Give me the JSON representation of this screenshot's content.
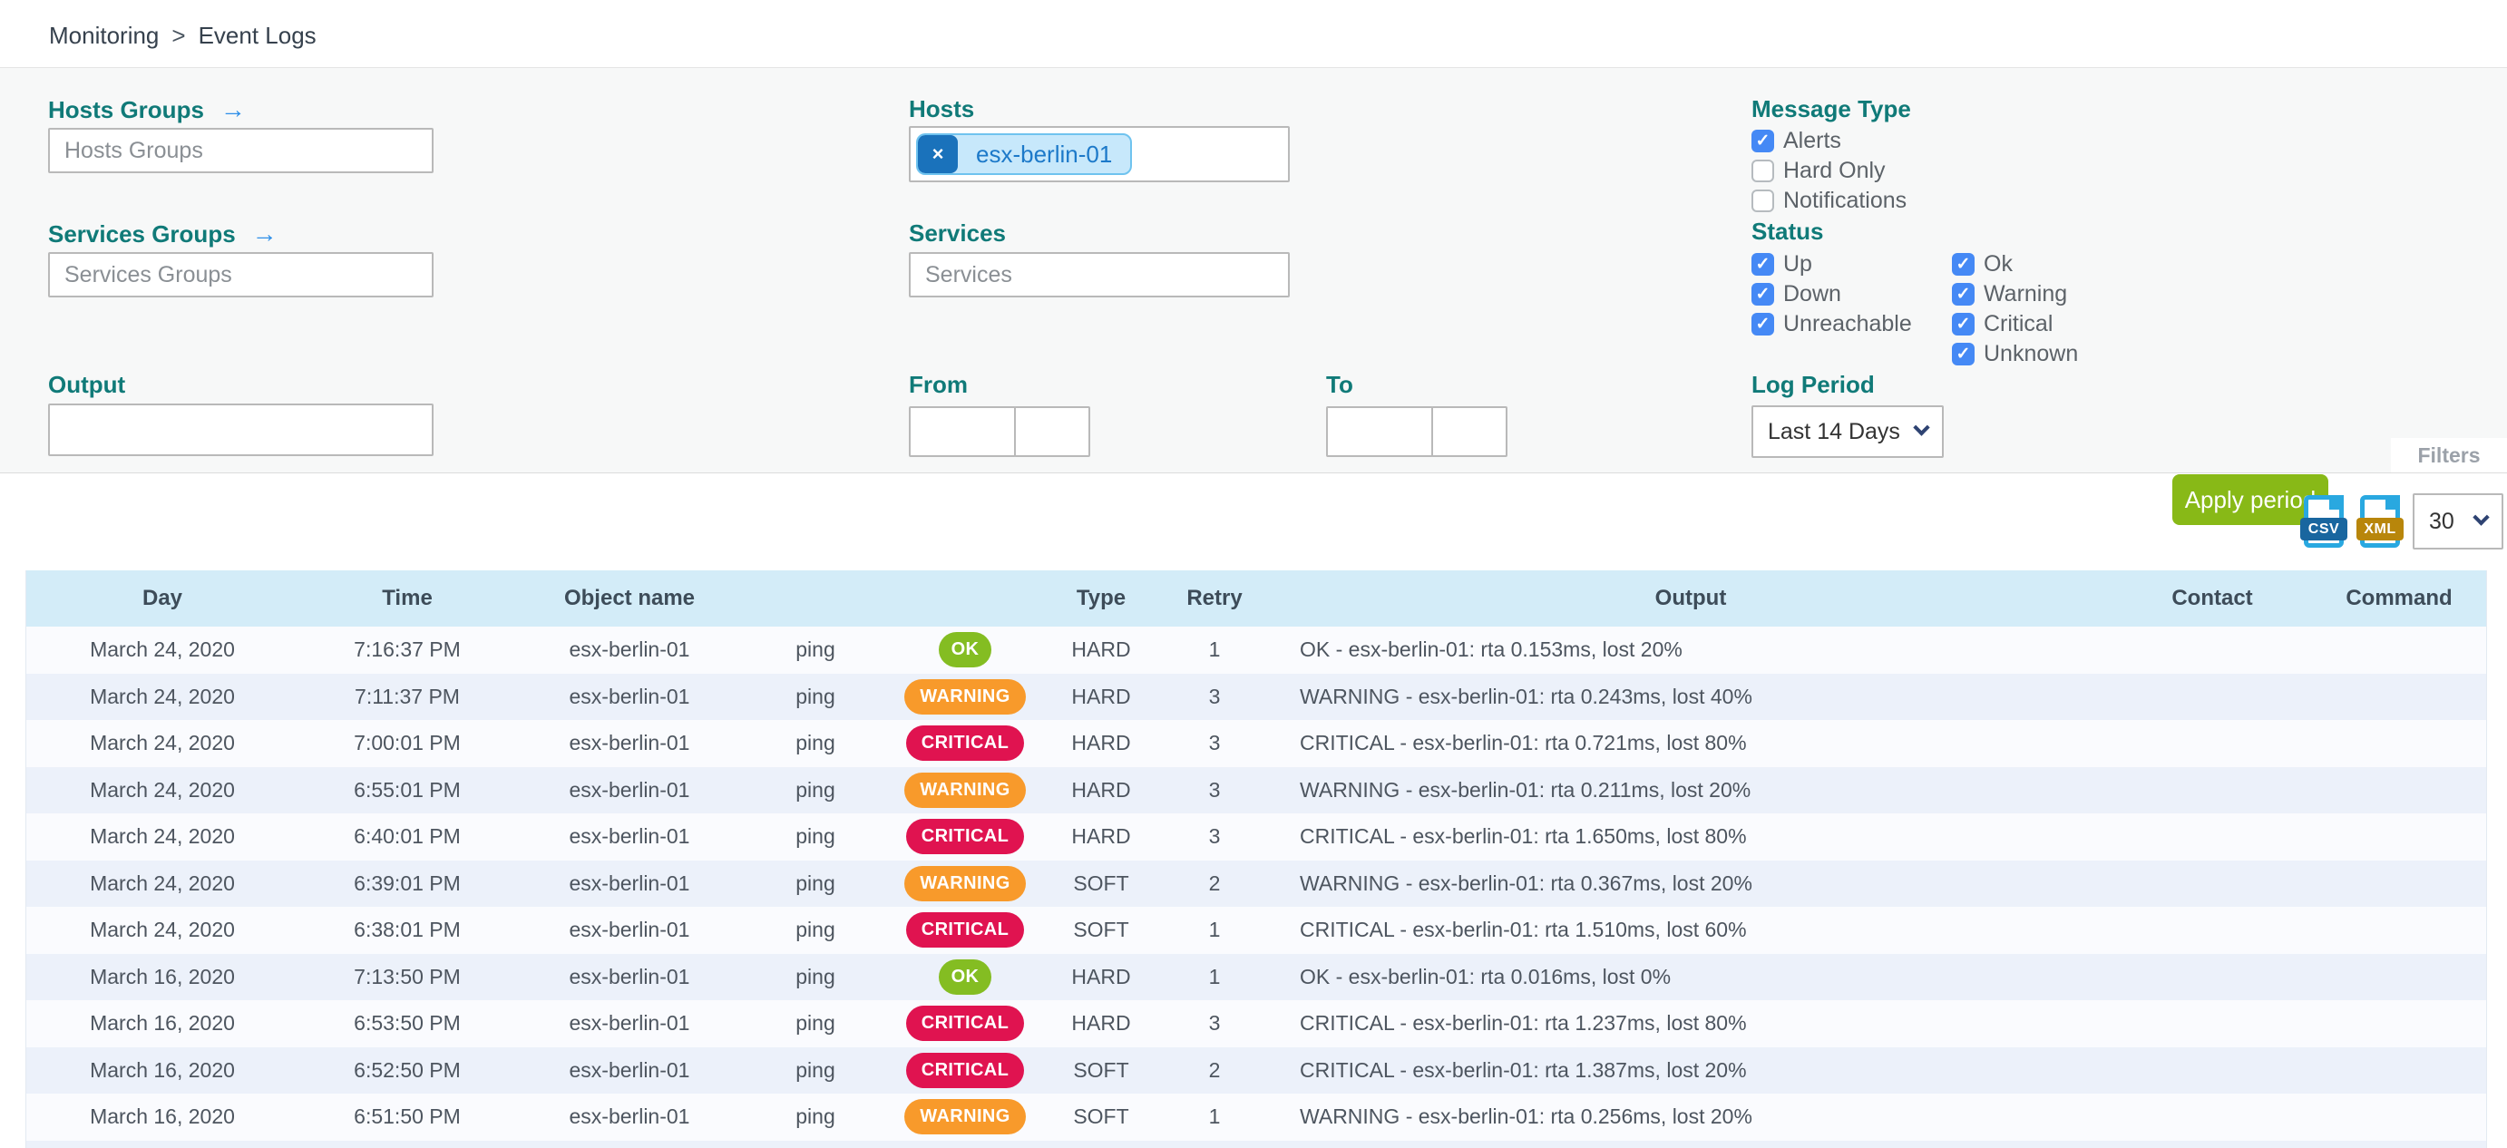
{
  "breadcrumb": {
    "items": [
      "Monitoring",
      "Event Logs"
    ],
    "separator": ">"
  },
  "filters": {
    "hosts_groups": {
      "label": "Hosts Groups",
      "arrow": "→",
      "placeholder": "Hosts Groups",
      "value": ""
    },
    "services_groups": {
      "label": "Services Groups",
      "arrow": "→",
      "placeholder": "Services Groups",
      "value": ""
    },
    "hosts": {
      "label": "Hosts",
      "chips": [
        "esx-berlin-01"
      ],
      "chip_remove_glyph": "×"
    },
    "services": {
      "label": "Services",
      "placeholder": "Services",
      "value": ""
    },
    "message_type": {
      "label": "Message Type",
      "options": [
        {
          "label": "Alerts",
          "checked": true
        },
        {
          "label": "Hard Only",
          "checked": false
        },
        {
          "label": "Notifications",
          "checked": false
        }
      ]
    },
    "status": {
      "label": "Status",
      "columns": [
        [
          {
            "label": "Up",
            "checked": true
          },
          {
            "label": "Down",
            "checked": true
          },
          {
            "label": "Unreachable",
            "checked": true
          }
        ],
        [
          {
            "label": "Ok",
            "checked": true
          },
          {
            "label": "Warning",
            "checked": true
          },
          {
            "label": "Critical",
            "checked": true
          },
          {
            "label": "Unknown",
            "checked": true
          }
        ]
      ]
    },
    "output": {
      "label": "Output",
      "value": ""
    },
    "from": {
      "label": "From",
      "date_value": "",
      "time_value": ""
    },
    "to": {
      "label": "To",
      "date_value": "",
      "time_value": ""
    },
    "log_period": {
      "label": "Log Period",
      "selected": "Last 14 Days"
    },
    "apply_button_label": "Apply period",
    "filters_tab_label": "Filters"
  },
  "toolbar": {
    "export_csv_label": "CSV",
    "export_xml_label": "XML",
    "page_size_selected": "30"
  },
  "table": {
    "headers": [
      "Day",
      "Time",
      "Object name",
      "",
      "",
      "Type",
      "Retry",
      "Output",
      "Contact",
      "Command"
    ],
    "status_colors": {
      "OK": "#84bd22",
      "WARNING": "#f89a2b",
      "CRITICAL": "#e01350"
    },
    "rows": [
      {
        "day": "March 24, 2020",
        "time": "7:16:37 PM",
        "object": "esx-berlin-01",
        "service": "ping",
        "status": "OK",
        "type": "HARD",
        "retry": "1",
        "output": "OK - esx-berlin-01: rta 0.153ms, lost 20%",
        "contact": "",
        "command": ""
      },
      {
        "day": "March 24, 2020",
        "time": "7:11:37 PM",
        "object": "esx-berlin-01",
        "service": "ping",
        "status": "WARNING",
        "type": "HARD",
        "retry": "3",
        "output": "WARNING - esx-berlin-01: rta 0.243ms, lost 40%",
        "contact": "",
        "command": ""
      },
      {
        "day": "March 24, 2020",
        "time": "7:00:01 PM",
        "object": "esx-berlin-01",
        "service": "ping",
        "status": "CRITICAL",
        "type": "HARD",
        "retry": "3",
        "output": "CRITICAL - esx-berlin-01: rta 0.721ms, lost 80%",
        "contact": "",
        "command": ""
      },
      {
        "day": "March 24, 2020",
        "time": "6:55:01 PM",
        "object": "esx-berlin-01",
        "service": "ping",
        "status": "WARNING",
        "type": "HARD",
        "retry": "3",
        "output": "WARNING - esx-berlin-01: rta 0.211ms, lost 20%",
        "contact": "",
        "command": ""
      },
      {
        "day": "March 24, 2020",
        "time": "6:40:01 PM",
        "object": "esx-berlin-01",
        "service": "ping",
        "status": "CRITICAL",
        "type": "HARD",
        "retry": "3",
        "output": "CRITICAL - esx-berlin-01: rta 1.650ms, lost 80%",
        "contact": "",
        "command": ""
      },
      {
        "day": "March 24, 2020",
        "time": "6:39:01 PM",
        "object": "esx-berlin-01",
        "service": "ping",
        "status": "WARNING",
        "type": "SOFT",
        "retry": "2",
        "output": "WARNING - esx-berlin-01: rta 0.367ms, lost 20%",
        "contact": "",
        "command": ""
      },
      {
        "day": "March 24, 2020",
        "time": "6:38:01 PM",
        "object": "esx-berlin-01",
        "service": "ping",
        "status": "CRITICAL",
        "type": "SOFT",
        "retry": "1",
        "output": "CRITICAL - esx-berlin-01: rta 1.510ms, lost 60%",
        "contact": "",
        "command": ""
      },
      {
        "day": "March 16, 2020",
        "time": "7:13:50 PM",
        "object": "esx-berlin-01",
        "service": "ping",
        "status": "OK",
        "type": "HARD",
        "retry": "1",
        "output": "OK - esx-berlin-01: rta 0.016ms, lost 0%",
        "contact": "",
        "command": ""
      },
      {
        "day": "March 16, 2020",
        "time": "6:53:50 PM",
        "object": "esx-berlin-01",
        "service": "ping",
        "status": "CRITICAL",
        "type": "HARD",
        "retry": "3",
        "output": "CRITICAL - esx-berlin-01: rta 1.237ms, lost 80%",
        "contact": "",
        "command": ""
      },
      {
        "day": "March 16, 2020",
        "time": "6:52:50 PM",
        "object": "esx-berlin-01",
        "service": "ping",
        "status": "CRITICAL",
        "type": "SOFT",
        "retry": "2",
        "output": "CRITICAL - esx-berlin-01: rta 1.387ms, lost 20%",
        "contact": "",
        "command": ""
      },
      {
        "day": "March 16, 2020",
        "time": "6:51:50 PM",
        "object": "esx-berlin-01",
        "service": "ping",
        "status": "WARNING",
        "type": "SOFT",
        "retry": "1",
        "output": "WARNING - esx-berlin-01: rta 0.256ms, lost 20%",
        "contact": "",
        "command": ""
      }
    ]
  },
  "colors": {
    "label_teal": "#107a78",
    "accent_blue": "#4589f5",
    "apply_green": "#88b917",
    "header_blue_bg": "#d3ecf8",
    "alt_row_bg": "#ecf1fa",
    "ok": "#84bd22",
    "warning": "#f89a2b",
    "critical": "#e01350"
  }
}
